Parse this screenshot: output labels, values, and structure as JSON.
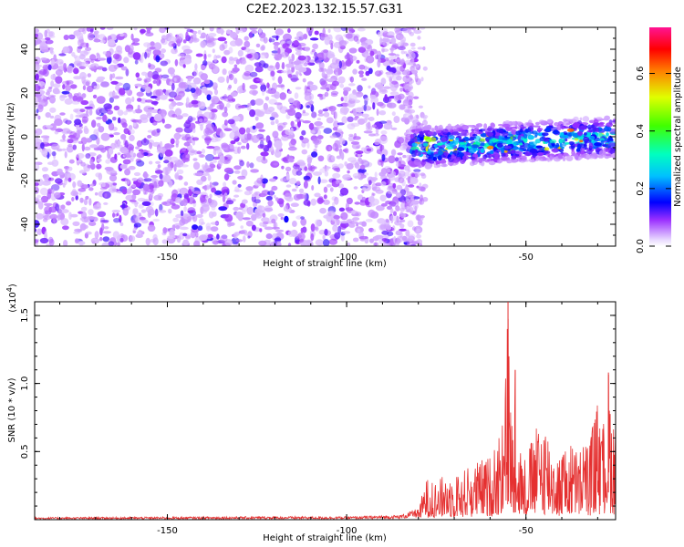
{
  "chart_data": [
    {
      "type": "heatmap",
      "title": "C2E2.2023.132.15.57.G31",
      "xlabel": "Height of straight line (km)",
      "ylabel": "Frequency (Hz)",
      "xlim": [
        -187,
        -25
      ],
      "ylim": [
        -50,
        50
      ],
      "x_ticks": [
        -150,
        -100,
        -50
      ],
      "y_ticks": [
        -40,
        -20,
        0,
        20,
        40
      ],
      "colorbar": {
        "label": "Normalized spectral amplitude",
        "range": [
          0,
          0.76
        ],
        "ticks": [
          0.0,
          0.2,
          0.4,
          0.6
        ],
        "colors": [
          "#ffffff",
          "#9b30ff",
          "#0000ff",
          "#00ffff",
          "#00ff00",
          "#ffff00",
          "#ff0000",
          "#ff1493"
        ]
      },
      "regions": [
        {
          "x_range": [
            -187,
            -80
          ],
          "freq_range": [
            -50,
            50
          ],
          "amplitude": "low (0.02-0.12)",
          "color": "#9b30ff"
        },
        {
          "x_range": [
            -82,
            -25
          ],
          "freq_center": [
            -5,
            0
          ],
          "freq_halfwidth": 8,
          "amplitude": "high (0.15-0.55)"
        }
      ]
    },
    {
      "type": "line",
      "xlabel": "Height of straight line (km)",
      "ylabel": "SNR (10 * v/v)",
      "multiplier": "(x10^4)",
      "xlim": [
        -187,
        -25
      ],
      "ylim": [
        0,
        1.6
      ],
      "x_ticks": [
        -150,
        -100,
        -50
      ],
      "y_ticks": [
        0.5,
        1.0,
        1.5
      ],
      "color": "#e53030",
      "series": [
        {
          "points": [
            [
              -187,
              0.01
            ],
            [
              -150,
              0.012
            ],
            [
              -120,
              0.014
            ],
            [
              -100,
              0.013
            ],
            [
              -85,
              0.02
            ],
            [
              -80,
              0.05
            ],
            [
              -78,
              0.3
            ],
            [
              -75,
              0.25
            ],
            [
              -72,
              0.35
            ],
            [
              -70,
              0.3
            ],
            [
              -65,
              0.4
            ],
            [
              -60,
              0.45
            ],
            [
              -58,
              0.55
            ],
            [
              -56,
              0.75
            ],
            [
              -55,
              1.6
            ],
            [
              -54,
              0.7
            ],
            [
              -53,
              1.1
            ],
            [
              -52,
              0.5
            ],
            [
              -50,
              0.45
            ],
            [
              -48,
              0.6
            ],
            [
              -45,
              0.75
            ],
            [
              -42,
              0.5
            ],
            [
              -40,
              0.45
            ],
            [
              -38,
              0.55
            ],
            [
              -35,
              0.5
            ],
            [
              -32,
              0.6
            ],
            [
              -30,
              0.85
            ],
            [
              -29,
              0.55
            ],
            [
              -27,
              1.08
            ],
            [
              -26,
              0.8
            ],
            [
              -25,
              0.7
            ]
          ]
        }
      ]
    }
  ]
}
